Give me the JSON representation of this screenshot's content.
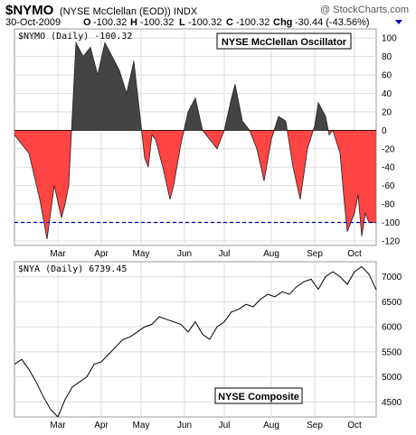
{
  "header": {
    "symbol": "$NYMO",
    "description": "(NYSE McClellan (EOD)) INDX",
    "date": "30-Oct-2009",
    "open_label": "O",
    "open": "-100.32",
    "high_label": "H",
    "high": "-100.32",
    "low_label": "L",
    "low": "-100.32",
    "close_label": "C",
    "close": "-100.32",
    "chg_label": "Chg",
    "chg": "-30.44 (-43.56%)",
    "chg_color": "#0000cc",
    "brand": "@ StockCharts.com"
  },
  "chart_data": [
    {
      "type": "area",
      "legend": "$NYMO (Daily) -100.32",
      "title": "NYSE McClellan Oscillator",
      "positive_color": "#444444",
      "negative_color": "#ff4444",
      "reference_line": -100,
      "reference_color": "#0000aa",
      "ylim": [
        -125,
        110
      ],
      "y_ticks": [
        100,
        80,
        60,
        40,
        20,
        0,
        -20,
        -40,
        -60,
        -80,
        -100,
        -120
      ],
      "x_labels": [
        "Mar",
        "Apr",
        "May",
        "Jun",
        "Jul",
        "Aug",
        "Sep",
        "Oct"
      ],
      "x_label_pos": [
        0.12,
        0.24,
        0.35,
        0.47,
        0.58,
        0.71,
        0.83,
        0.94
      ],
      "x": [
        0.0,
        0.04,
        0.07,
        0.09,
        0.11,
        0.13,
        0.14,
        0.15,
        0.17,
        0.19,
        0.21,
        0.23,
        0.25,
        0.27,
        0.29,
        0.31,
        0.33,
        0.35,
        0.36,
        0.37,
        0.38,
        0.39,
        0.41,
        0.43,
        0.44,
        0.46,
        0.48,
        0.5,
        0.52,
        0.54,
        0.56,
        0.58,
        0.6,
        0.61,
        0.62,
        0.63,
        0.65,
        0.67,
        0.69,
        0.71,
        0.73,
        0.75,
        0.77,
        0.79,
        0.81,
        0.83,
        0.84,
        0.86,
        0.87,
        0.88,
        0.9,
        0.91,
        0.92,
        0.94,
        0.95,
        0.96,
        0.97,
        0.98,
        1.0
      ],
      "values": [
        -5,
        -25,
        -75,
        -118,
        -60,
        -95,
        -80,
        -60,
        95,
        80,
        90,
        60,
        95,
        80,
        65,
        40,
        75,
        5,
        -30,
        -40,
        -5,
        -10,
        -40,
        -75,
        -60,
        -15,
        20,
        35,
        0,
        -10,
        -20,
        0,
        35,
        50,
        30,
        10,
        0,
        -20,
        -55,
        -10,
        15,
        10,
        -40,
        -75,
        -20,
        5,
        30,
        15,
        -5,
        0,
        -25,
        -70,
        -110,
        -90,
        -70,
        -115,
        -90,
        -100,
        -100
      ]
    },
    {
      "type": "line",
      "legend": "$NYA (Daily) 6739.45",
      "title": "NYSE Composite",
      "line_color": "#000000",
      "ylim": [
        4200,
        7300
      ],
      "y_ticks": [
        7000,
        6500,
        6000,
        5500,
        5000,
        4500
      ],
      "x_labels": [
        "Mar",
        "Apr",
        "May",
        "Jun",
        "Jul",
        "Aug",
        "Sep",
        "Oct"
      ],
      "x_label_pos": [
        0.12,
        0.24,
        0.35,
        0.47,
        0.58,
        0.71,
        0.83,
        0.94
      ],
      "x": [
        0.0,
        0.02,
        0.04,
        0.06,
        0.08,
        0.1,
        0.12,
        0.14,
        0.16,
        0.18,
        0.2,
        0.22,
        0.24,
        0.26,
        0.28,
        0.3,
        0.32,
        0.34,
        0.36,
        0.38,
        0.4,
        0.42,
        0.44,
        0.46,
        0.48,
        0.5,
        0.52,
        0.54,
        0.56,
        0.58,
        0.6,
        0.62,
        0.64,
        0.66,
        0.68,
        0.7,
        0.72,
        0.74,
        0.76,
        0.78,
        0.8,
        0.82,
        0.84,
        0.86,
        0.88,
        0.9,
        0.92,
        0.94,
        0.96,
        0.98,
        1.0
      ],
      "values": [
        5250,
        5350,
        5150,
        4900,
        4600,
        4350,
        4200,
        4550,
        4800,
        4900,
        5000,
        5250,
        5300,
        5450,
        5600,
        5750,
        5800,
        5900,
        6000,
        6050,
        6200,
        6150,
        6100,
        6050,
        5900,
        6100,
        5850,
        5750,
        6000,
        6100,
        6300,
        6350,
        6450,
        6400,
        6550,
        6650,
        6600,
        6700,
        6650,
        6800,
        6900,
        6950,
        6750,
        7000,
        7100,
        7000,
        6850,
        7100,
        7200,
        7050,
        6740
      ]
    }
  ]
}
